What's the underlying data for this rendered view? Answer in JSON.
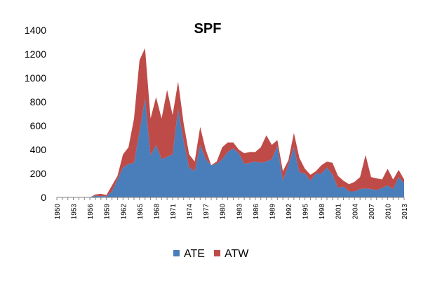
{
  "chart_data": {
    "type": "area",
    "stacked": true,
    "title": "SPF",
    "xlabel": "",
    "ylabel": "",
    "ylim": [
      0,
      1400
    ],
    "yticks": [
      0,
      200,
      400,
      600,
      800,
      1000,
      1200,
      1400
    ],
    "x": [
      1950,
      1951,
      1952,
      1953,
      1954,
      1955,
      1956,
      1957,
      1958,
      1959,
      1960,
      1961,
      1962,
      1963,
      1964,
      1965,
      1966,
      1967,
      1968,
      1969,
      1970,
      1971,
      1972,
      1973,
      1974,
      1975,
      1976,
      1977,
      1978,
      1979,
      1980,
      1981,
      1982,
      1983,
      1984,
      1985,
      1986,
      1987,
      1988,
      1989,
      1990,
      1991,
      1992,
      1993,
      1994,
      1995,
      1996,
      1997,
      1998,
      1999,
      2000,
      2001,
      2002,
      2003,
      2004,
      2005,
      2006,
      2007,
      2008,
      2009,
      2010,
      2011,
      2012,
      2013
    ],
    "xtick_labels": [
      "1950",
      "1953",
      "1956",
      "1959",
      "1962",
      "1965",
      "1968",
      "1971",
      "1974",
      "1977",
      "1980",
      "1983",
      "1986",
      "1989",
      "1992",
      "1995",
      "1998",
      "2001",
      "2004",
      "2007",
      "2010",
      "2013"
    ],
    "grid": false,
    "legend_position": "bottom",
    "series": [
      {
        "name": "ATE",
        "color": "#4a7ebb",
        "values": [
          0,
          0,
          0,
          0,
          0,
          0,
          0,
          15,
          10,
          10,
          50,
          150,
          250,
          280,
          290,
          550,
          830,
          350,
          440,
          320,
          340,
          360,
          740,
          470,
          250,
          220,
          440,
          320,
          270,
          280,
          320,
          380,
          410,
          370,
          280,
          290,
          300,
          290,
          300,
          320,
          430,
          140,
          270,
          420,
          210,
          200,
          140,
          200,
          200,
          250,
          190,
          80,
          90,
          50,
          50,
          70,
          75,
          70,
          60,
          80,
          100,
          70,
          170,
          120
        ]
      },
      {
        "name": "ATW",
        "color": "#be4b48",
        "values": [
          0,
          0,
          0,
          0,
          0,
          0,
          0,
          10,
          20,
          10,
          50,
          30,
          110,
          140,
          370,
          600,
          420,
          310,
          400,
          340,
          560,
          330,
          230,
          150,
          110,
          80,
          150,
          80,
          0,
          20,
          100,
          80,
          50,
          30,
          90,
          90,
          80,
          130,
          220,
          120,
          50,
          80,
          40,
          120,
          120,
          40,
          50,
          20,
          70,
          50,
          100,
          100,
          50,
          60,
          80,
          100,
          280,
          100,
          100,
          70,
          140,
          80,
          60,
          30
        ]
      }
    ]
  }
}
